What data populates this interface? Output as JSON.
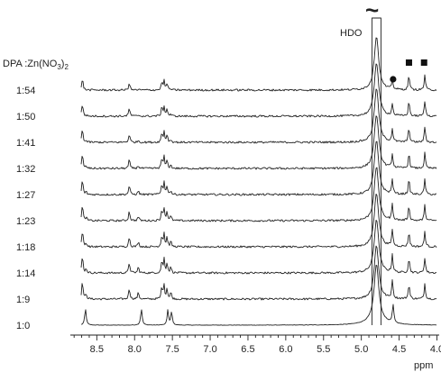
{
  "chart_data": {
    "type": "line",
    "xlabel": "ppm",
    "x_ticks": [
      "8.5",
      "8.0",
      "7.5",
      "7.0",
      "6.5",
      "6.0",
      "5.5",
      "5.0",
      "4.5",
      "4.0"
    ],
    "xlim": [
      8.85,
      3.97
    ],
    "x_reversed": true,
    "ratio_header_parts": [
      "DPA :Zn(NO",
      "3",
      ")",
      "2"
    ],
    "series": [
      {
        "name": "1:0"
      },
      {
        "name": "1:9"
      },
      {
        "name": "1:14"
      },
      {
        "name": "1:18"
      },
      {
        "name": "1:23"
      },
      {
        "name": "1:27"
      },
      {
        "name": "1:32"
      },
      {
        "name": "1:41"
      },
      {
        "name": "1:50"
      },
      {
        "name": "1:54"
      }
    ],
    "annotations": {
      "hdo_label": "HDO",
      "axis_break": "~",
      "circle_marker_ppm": 4.58,
      "square_marker_ppm": [
        4.37,
        4.17
      ]
    }
  }
}
